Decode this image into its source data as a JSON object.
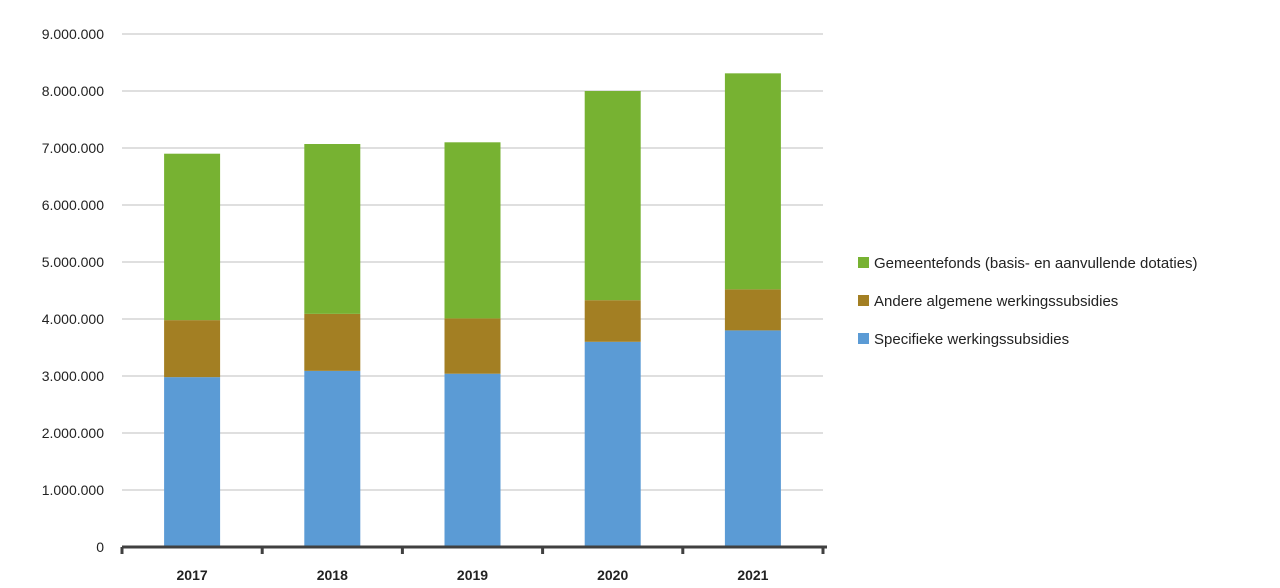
{
  "chart_data": {
    "type": "bar",
    "stacked": true,
    "categories": [
      "2017",
      "2018",
      "2019",
      "2020",
      "2021"
    ],
    "series": [
      {
        "name": "Specifieke werkingssubsidies",
        "color": "#5b9bd5",
        "values": [
          2980000,
          3090000,
          3040000,
          3600000,
          3800000
        ]
      },
      {
        "name": "Andere algemene werkingssubsidies",
        "color": "#a37f23",
        "values": [
          1000000,
          1000000,
          970000,
          730000,
          720000
        ]
      },
      {
        "name": "Gemeentefonds (basis- en aanvullende dotaties)",
        "color": "#77b232",
        "values": [
          2920000,
          2980000,
          3090000,
          3670000,
          3790000
        ]
      }
    ],
    "ylim": [
      0,
      9000000
    ],
    "yticks": [
      0,
      1000000,
      2000000,
      3000000,
      4000000,
      5000000,
      6000000,
      7000000,
      8000000,
      9000000
    ],
    "ytick_labels": [
      "0",
      "1.000.000",
      "2.000.000",
      "3.000.000",
      "4.000.000",
      "5.000.000",
      "6.000.000",
      "7.000.000",
      "8.000.000",
      "9.000.000"
    ],
    "title": "",
    "xlabel": "",
    "ylabel": "",
    "grid": "horizontal",
    "legend_position": "right",
    "legend_order": [
      "Gemeentefonds (basis- en aanvullende dotaties)",
      "Andere algemene werkingssubsidies",
      "Specifieke werkingssubsidies"
    ]
  }
}
